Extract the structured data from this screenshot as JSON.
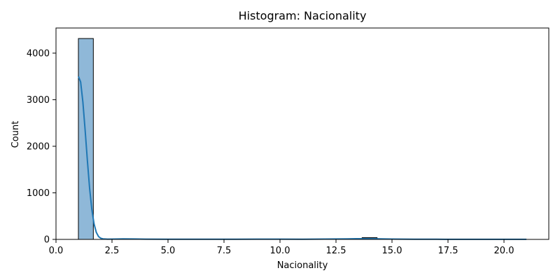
{
  "chart_data": {
    "type": "bar",
    "title": "Histogram: Nacionality",
    "xlabel": "Nacionality",
    "ylabel": "Count",
    "xlim": [
      0,
      22
    ],
    "ylim": [
      0,
      4540
    ],
    "xticks": [
      0.0,
      2.5,
      5.0,
      7.5,
      10.0,
      12.5,
      15.0,
      17.5,
      20.0
    ],
    "xtick_labels": [
      "0.0",
      "2.5",
      "5.0",
      "7.5",
      "10.0",
      "12.5",
      "15.0",
      "17.5",
      "20.0"
    ],
    "yticks": [
      0,
      1000,
      2000,
      3000,
      4000
    ],
    "ytick_labels": [
      "0",
      "1000",
      "2000",
      "3000",
      "4000"
    ],
    "bin_width": 0.6667,
    "bins": [
      {
        "start": 1.0,
        "count": 4314
      },
      {
        "start": 1.6667,
        "count": 0
      },
      {
        "start": 2.3333,
        "count": 3
      },
      {
        "start": 3.0,
        "count": 13
      },
      {
        "start": 3.6667,
        "count": 2
      },
      {
        "start": 4.3333,
        "count": 0
      },
      {
        "start": 5.0,
        "count": 1
      },
      {
        "start": 5.6667,
        "count": 1
      },
      {
        "start": 6.3333,
        "count": 1
      },
      {
        "start": 7.0,
        "count": 2
      },
      {
        "start": 7.6667,
        "count": 0
      },
      {
        "start": 8.3333,
        "count": 2
      },
      {
        "start": 9.0,
        "count": 5
      },
      {
        "start": 9.6667,
        "count": 2
      },
      {
        "start": 10.3333,
        "count": 0
      },
      {
        "start": 11.0,
        "count": 2
      },
      {
        "start": 11.6667,
        "count": 3
      },
      {
        "start": 12.3333,
        "count": 5
      },
      {
        "start": 13.0,
        "count": 0
      },
      {
        "start": 13.6667,
        "count": 38
      },
      {
        "start": 14.3333,
        "count": 2
      },
      {
        "start": 15.0,
        "count": 0
      },
      {
        "start": 15.6667,
        "count": 1
      },
      {
        "start": 16.3333,
        "count": 1
      },
      {
        "start": 17.0,
        "count": 1
      },
      {
        "start": 17.6667,
        "count": 0
      },
      {
        "start": 18.3333,
        "count": 1
      },
      {
        "start": 19.0,
        "count": 0
      },
      {
        "start": 19.6667,
        "count": 0
      },
      {
        "start": 20.3333,
        "count": 1
      }
    ],
    "kde": [
      [
        1.0,
        3500
      ],
      [
        1.1,
        3380
      ],
      [
        1.2,
        2950
      ],
      [
        1.3,
        2350
      ],
      [
        1.4,
        1700
      ],
      [
        1.5,
        1100
      ],
      [
        1.6,
        640
      ],
      [
        1.7,
        330
      ],
      [
        1.8,
        150
      ],
      [
        1.9,
        60
      ],
      [
        2.0,
        25
      ],
      [
        2.1,
        12
      ],
      [
        2.3,
        6
      ],
      [
        2.6,
        8
      ],
      [
        3.0,
        12
      ],
      [
        3.5,
        9
      ],
      [
        4.0,
        5
      ],
      [
        5.0,
        3
      ],
      [
        6.0,
        3
      ],
      [
        7.0,
        3
      ],
      [
        8.0,
        4
      ],
      [
        9.0,
        6
      ],
      [
        10.0,
        5
      ],
      [
        11.0,
        4
      ],
      [
        12.0,
        8
      ],
      [
        13.0,
        12
      ],
      [
        13.7,
        16
      ],
      [
        14.3,
        14
      ],
      [
        15.0,
        8
      ],
      [
        16.0,
        4
      ],
      [
        17.0,
        3
      ],
      [
        18.0,
        2
      ],
      [
        19.0,
        2
      ],
      [
        20.0,
        1
      ],
      [
        21.0,
        1
      ]
    ],
    "grid": false,
    "legend": "none",
    "colors": {
      "bar_fill": "#8fb8d8",
      "bar_edge": "#000000",
      "kde_line": "#1f77b4",
      "axis": "#000000"
    }
  }
}
